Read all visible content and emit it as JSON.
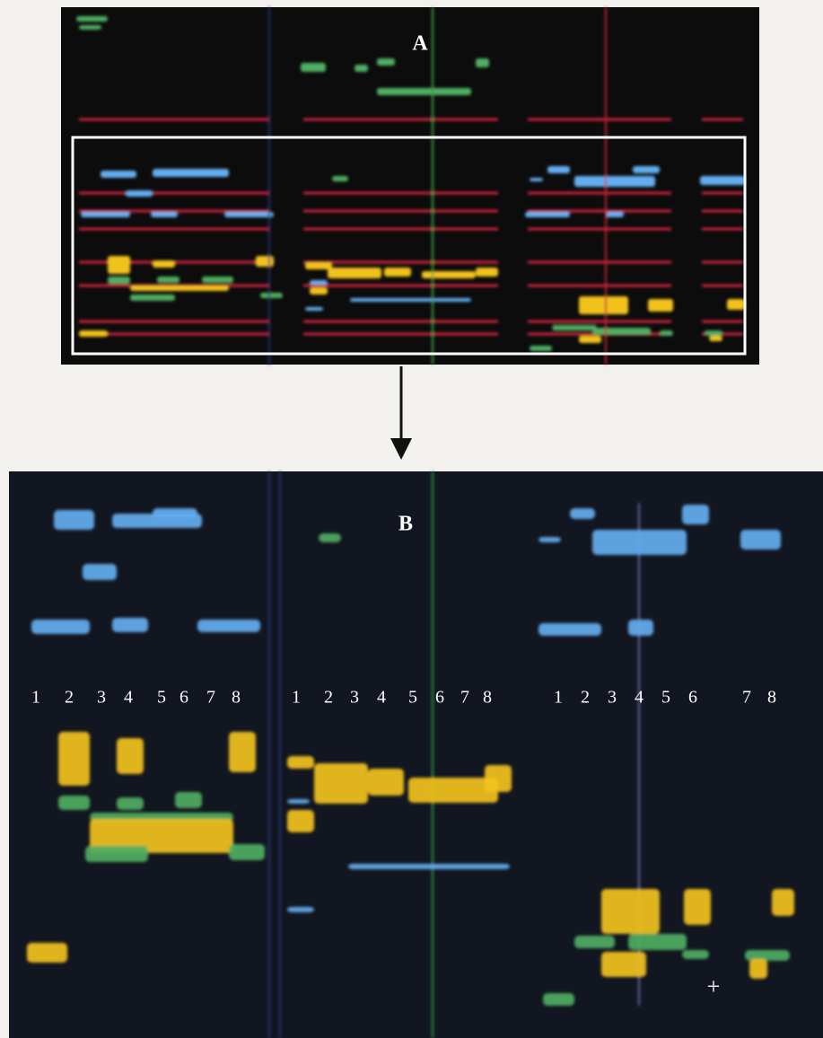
{
  "panels": [
    {
      "label": "A"
    },
    {
      "label": "B",
      "lane_groups": [
        [
          "1",
          "2",
          "3",
          "4",
          "5",
          "6",
          "7",
          "8"
        ],
        [
          "1",
          "2",
          "3",
          "4",
          "5",
          "6",
          "7",
          "8"
        ],
        [
          "1",
          "2",
          "3",
          "4",
          "5",
          "6",
          "7",
          "8"
        ]
      ],
      "marker": "+"
    }
  ]
}
